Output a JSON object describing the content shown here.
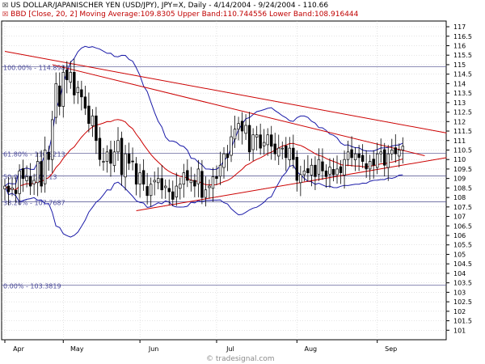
{
  "header": {
    "line1": "US DOLLAR/JAPANISCHER YEN (USD/JPY), JPY=X, Daily - 4/14/2004 - 9/24/2004 - 110.66",
    "line2": "BBD [Close, 20, 2] Moving Average:109.8305 Upper Band:110.744556 Lower Band:108.916444",
    "line1_marker": "☒",
    "line2_marker": "☒"
  },
  "watermark": "© tradesignal.com",
  "colors": {
    "candle": "#000000",
    "moving_average": "#cc0000",
    "bollinger_bands": "#1a1aa8",
    "trendlines": "#cc0000",
    "fib_lines": "#4a4a8a",
    "fib_labels": "#4a4a9a",
    "grid": "#c8c8c8"
  },
  "chart_data": {
    "type": "candlestick",
    "title": "US DOLLAR/JAPANISCHER YEN (USD/JPY), JPY=X, Daily - 4/14/2004 - 9/24/2004 - 110.66",
    "ylim": [
      100.5,
      117.3
    ],
    "y_ticks": [
      101,
      101.5,
      102,
      102.5,
      103,
      103.5,
      104,
      104.5,
      105,
      105.5,
      106,
      106.5,
      107,
      107.5,
      108,
      108.5,
      109,
      109.5,
      110,
      110.5,
      111,
      111.5,
      112,
      112.5,
      113,
      113.5,
      114,
      114.5,
      115,
      115.5,
      116,
      116.5,
      117
    ],
    "x_labels": [
      {
        "label": "Apr",
        "day": 0
      },
      {
        "label": "May",
        "day": 16
      },
      {
        "label": "Jun",
        "day": 37
      },
      {
        "label": "Jul",
        "day": 58
      },
      {
        "label": "Aug",
        "day": 80
      },
      {
        "label": "Sep",
        "day": 102
      }
    ],
    "days_total": 121,
    "closes": [
      108.6,
      108.3,
      108.5,
      108.2,
      109.4,
      109.0,
      109.1,
      108.6,
      108.9,
      109.9,
      108.6,
      110.5,
      110.0,
      112.1,
      114.0,
      112.8,
      114.6,
      114.2,
      114.6,
      113.4,
      113.8,
      113.3,
      112.7,
      111.9,
      112.3,
      111.0,
      110.0,
      109.9,
      110.4,
      109.8,
      110.4,
      111.0,
      109.2,
      110.3,
      109.8,
      109.9,
      108.7,
      109.3,
      108.7,
      108.1,
      108.7,
      108.9,
      109.0,
      108.4,
      108.6,
      108.3,
      107.9,
      108.6,
      108.7,
      109.3,
      108.9,
      108.9,
      108.6,
      109.5,
      108.0,
      108.4,
      108.6,
      109.1,
      109.0,
      109.7,
      110.3,
      110.1,
      111.2,
      111.6,
      111.9,
      111.5,
      111.8,
      110.4,
      111.3,
      111.3,
      110.6,
      110.9,
      111.3,
      110.7,
      110.3,
      110.6,
      110.6,
      110.1,
      110.6,
      110.0,
      108.9,
      109.2,
      109.4,
      109.3,
      109.7,
      109.1,
      110.0,
      109.4,
      109.1,
      109.6,
      109.2,
      109.5,
      109.3,
      110.0,
      110.4,
      110.1,
      110.3,
      110.1,
      109.9,
      109.5,
      109.9,
      109.7,
      110.3,
      110.4,
      109.7,
      110.3,
      110.5,
      110.3,
      110.5,
      110.7
    ],
    "bollinger": {
      "period": 20,
      "stddev": 2,
      "moving_average_value": 109.8305,
      "upper_band_value": 110.744556,
      "lower_band_value": 108.916444
    },
    "fibonacci_levels": [
      {
        "label": "100.00% - 114.8981",
        "value": 114.8981
      },
      {
        "label": "61.80% - 110.3213",
        "value": 110.3213
      },
      {
        "label": "50.00% - 109.13",
        "value": 109.13
      },
      {
        "label": "38.20% - 107.7687",
        "value": 107.7687
      },
      {
        "label": "0.00% - 103.3819",
        "value": 103.3819
      }
    ],
    "trendlines": [
      {
        "from": {
          "day": 0,
          "price": 115.7
        },
        "to": {
          "day": 121,
          "price": 111.4
        }
      },
      {
        "from": {
          "day": 13,
          "price": 115.0
        },
        "to": {
          "day": 115,
          "price": 110.2
        }
      },
      {
        "from": {
          "day": 36,
          "price": 107.3
        },
        "to": {
          "day": 121,
          "price": 110.1
        }
      }
    ]
  }
}
